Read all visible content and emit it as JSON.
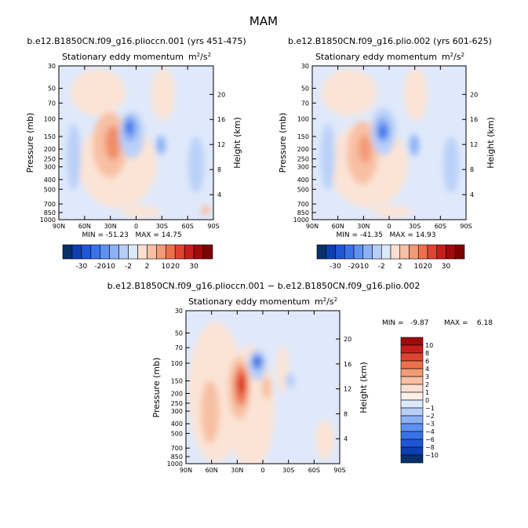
{
  "figure": {
    "title": "MAM"
  },
  "chart_data": [
    {
      "type": "contour",
      "case_title": "b.e12.B1850CN.f09_g16.plioccn.001 (yrs 451-475)",
      "title_text": "Stationary eddy momentum",
      "title_units_base": "m",
      "title_units_sup1": "2",
      "title_units_mid": "/s",
      "title_units_sup2": "2",
      "ylabel": "Pressure (mb)",
      "ylabel_right": "Height (km)",
      "x_ticks": [
        "90N",
        "60N",
        "30N",
        "0",
        "30S",
        "60S",
        "90S"
      ],
      "y_ticks": [
        "30",
        "50",
        "70",
        "100",
        "150",
        "200",
        "250",
        "300",
        "400",
        "500",
        "700",
        "850",
        "1000"
      ],
      "y_ticks_right": [
        "20",
        "16",
        "12",
        "8",
        "4"
      ],
      "stats": "MIN = -51.23   MAX = 14.75",
      "colorbar": {
        "orientation": "horizontal",
        "labels": [
          "-30",
          "-20",
          "-10",
          "-2",
          "2",
          "10",
          "20",
          "30"
        ],
        "colors": [
          "#08306b",
          "#0d3fb3",
          "#1f56d6",
          "#3a72e8",
          "#5f91f0",
          "#8db1f5",
          "#b7cff8",
          "#dce9fb",
          "#fbe0d2",
          "#f9c0a4",
          "#f39a76",
          "#ec704e",
          "#e04430",
          "#c81d1d",
          "#a10a0a",
          "#7d0303"
        ]
      }
    },
    {
      "type": "contour",
      "case_title": "b.e12.B1850CN.f09_g16.plio.002 (yrs 601-625)",
      "title_text": "Stationary eddy momentum",
      "title_units_base": "m",
      "title_units_sup1": "2",
      "title_units_mid": "/s",
      "title_units_sup2": "2",
      "ylabel": "Pressure (mb)",
      "ylabel_right": "Height (km)",
      "x_ticks": [
        "90N",
        "60N",
        "30N",
        "0",
        "30S",
        "60S",
        "90S"
      ],
      "y_ticks": [
        "30",
        "50",
        "70",
        "100",
        "150",
        "200",
        "250",
        "300",
        "400",
        "500",
        "700",
        "850",
        "1000"
      ],
      "y_ticks_right": [
        "20",
        "16",
        "12",
        "8",
        "4"
      ],
      "stats": "MIN = -41.35   MAX = 14.93",
      "colorbar": {
        "orientation": "horizontal",
        "labels": [
          "-30",
          "-20",
          "-10",
          "-2",
          "2",
          "10",
          "20",
          "30"
        ],
        "colors": [
          "#08306b",
          "#0d3fb3",
          "#1f56d6",
          "#3a72e8",
          "#5f91f0",
          "#8db1f5",
          "#b7cff8",
          "#dce9fb",
          "#fbe0d2",
          "#f9c0a4",
          "#f39a76",
          "#ec704e",
          "#e04430",
          "#c81d1d",
          "#a10a0a",
          "#7d0303"
        ]
      }
    },
    {
      "type": "contour",
      "case_title": "b.e12.B1850CN.f09_g16.plioccn.001 − b.e12.B1850CN.f09_g16.plio.002",
      "title_text": "Stationary eddy momentum",
      "title_units_base": "m",
      "title_units_sup1": "2",
      "title_units_mid": "/s",
      "title_units_sup2": "2",
      "ylabel": "Pressure (mb)",
      "ylabel_right": "Height (km)",
      "x_ticks": [
        "90N",
        "60N",
        "30N",
        "0",
        "30S",
        "60S",
        "90S"
      ],
      "y_ticks": [
        "30",
        "50",
        "70",
        "100",
        "150",
        "200",
        "250",
        "300",
        "400",
        "500",
        "700",
        "850",
        "1000"
      ],
      "y_ticks_right": [
        "20",
        "16",
        "12",
        "8",
        "4"
      ],
      "stats_min": "MIN =   -9.87",
      "stats_max": "MAX =    6.18",
      "colorbar": {
        "orientation": "vertical",
        "labels": [
          "10",
          "8",
          "6",
          "4",
          "3",
          "2",
          "1",
          "0",
          "−1",
          "−2",
          "−3",
          "−4",
          "−6",
          "−8",
          "−10"
        ],
        "colors": [
          "#a10a0a",
          "#c81d1d",
          "#e04430",
          "#ec704e",
          "#f39a76",
          "#f9c0a4",
          "#fbe0d2",
          "#fdf0e8",
          "#dce9fb",
          "#b7cff8",
          "#8db1f5",
          "#5f91f0",
          "#3a72e8",
          "#1f56d6",
          "#0d3fb3",
          "#08306b"
        ]
      }
    }
  ]
}
